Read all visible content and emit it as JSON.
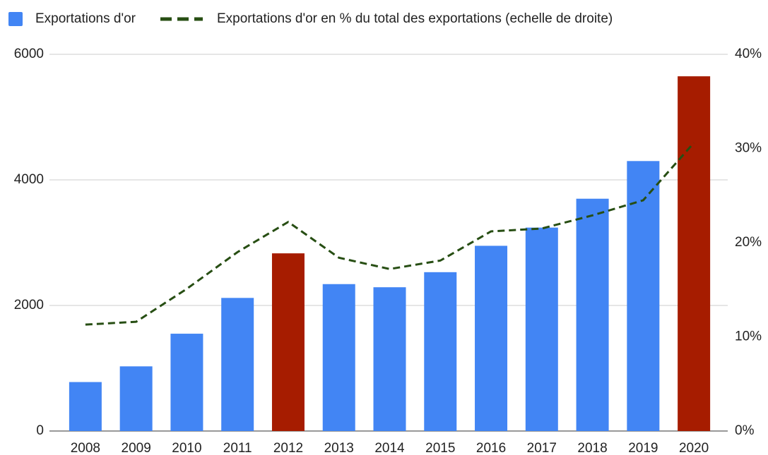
{
  "chart_data": {
    "type": "bar",
    "categories": [
      "2008",
      "2009",
      "2010",
      "2011",
      "2012",
      "2013",
      "2014",
      "2015",
      "2016",
      "2017",
      "2018",
      "2019",
      "2020"
    ],
    "series": [
      {
        "name": "Exportations d'or",
        "type": "bar",
        "color": "#4285f4",
        "point_colors": [
          "#4285f4",
          "#4285f4",
          "#4285f4",
          "#4285f4",
          "#a61c00",
          "#4285f4",
          "#4285f4",
          "#4285f4",
          "#4285f4",
          "#4285f4",
          "#4285f4",
          "#4285f4",
          "#a61c00"
        ],
        "values": [
          780,
          1030,
          1550,
          2120,
          2830,
          2340,
          2290,
          2530,
          2950,
          3240,
          3700,
          4300,
          5650
        ]
      },
      {
        "name": "Exportations d'or en % du total des exportations (echelle de droite)",
        "type": "line",
        "axis": "y2",
        "color": "#274e13",
        "dashed": true,
        "values": [
          11.3,
          11.6,
          15.1,
          19.0,
          22.2,
          18.4,
          17.2,
          18.1,
          21.2,
          21.5,
          22.9,
          24.5,
          30.6
        ]
      }
    ],
    "ylim": [
      0,
      6000
    ],
    "yticks": [
      0,
      2000,
      4000,
      6000
    ],
    "y2lim": [
      0,
      40
    ],
    "y2ticks": [
      {
        "value": 0,
        "label": "0%"
      },
      {
        "value": 10,
        "label": "10%"
      },
      {
        "value": 20,
        "label": "20%"
      },
      {
        "value": 30,
        "label": "30%"
      },
      {
        "value": 40,
        "label": "40%"
      }
    ],
    "grid": true,
    "legend": "top"
  }
}
